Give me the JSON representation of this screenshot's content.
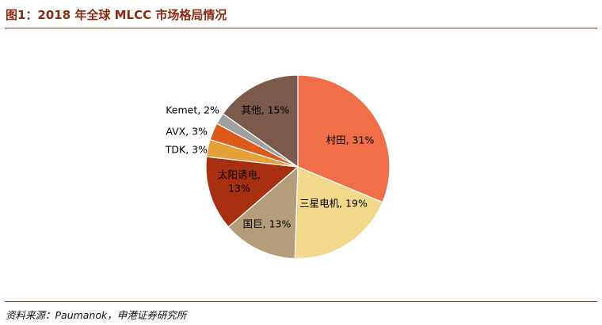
{
  "header": {
    "title": "图1：2018 年全球 MLCC 市场格局情况"
  },
  "footer": {
    "source": "资料来源：Paumanok，申港证券研究所"
  },
  "chart_data": {
    "type": "pie",
    "title": "",
    "start_angle_deg": 0,
    "direction": "clockwise",
    "slices": [
      {
        "label": "村田, 31%",
        "line1": "村田, 31%",
        "line2": "",
        "value": 31,
        "color": "#ef7048"
      },
      {
        "label": "三星电机, 19%",
        "line1": "三星电机, 19%",
        "line2": "",
        "value": 19,
        "color": "#f1d98c"
      },
      {
        "label": "国巨, 13%",
        "line1": "国巨, 13%",
        "line2": "",
        "value": 13,
        "color": "#b49d7a"
      },
      {
        "label": "太阳诱电, 13%",
        "line1": "太阳诱电,",
        "line2": "13%",
        "value": 13,
        "color": "#a6300f"
      },
      {
        "label": "TDK, 3%",
        "line1": "TDK, 3%",
        "line2": "",
        "value": 3,
        "color": "#e6a03a"
      },
      {
        "label": "AVX, 3%",
        "line1": "AVX, 3%",
        "line2": "",
        "value": 3,
        "color": "#dc5a1c"
      },
      {
        "label": "Kemet, 2%",
        "line1": "Kemet, 2%",
        "line2": "",
        "value": 2,
        "color": "#a0a0a0"
      },
      {
        "label": "其他, 15%",
        "line1": "其他, 15%",
        "line2": "",
        "value": 15,
        "color": "#7a5a4d"
      }
    ]
  }
}
